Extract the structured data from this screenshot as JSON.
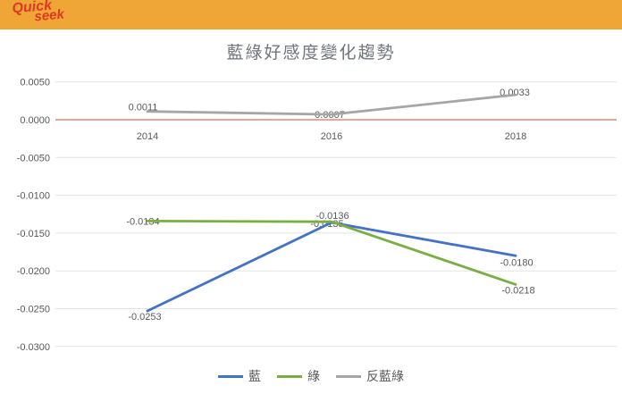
{
  "banner": {
    "logo_line1": "Quick",
    "logo_line2": "seek",
    "bg_color": "#f0a636",
    "logo_color": "#df3827"
  },
  "title_color": "#70757e",
  "text_color": "#595959",
  "chart_data": {
    "type": "line",
    "title": "藍綠好感度變化趨勢",
    "categories": [
      "2014",
      "2016",
      "2018"
    ],
    "series": [
      {
        "name": "藍",
        "color": "#4472c4",
        "values": [
          -0.0253,
          -0.0136,
          -0.018
        ],
        "labels": [
          "-0.0253",
          "-0.0136",
          "-0.0180"
        ]
      },
      {
        "name": "綠",
        "color": "#79af41",
        "values": [
          -0.0134,
          -0.0135,
          -0.0218
        ],
        "labels": [
          "-0.0134",
          "-0.0135",
          "-0.0218"
        ]
      },
      {
        "name": "反藍綠",
        "color": "#a6a6a6",
        "values": [
          0.0011,
          0.0007,
          0.0033
        ],
        "labels": [
          "0.0011",
          "0.0007",
          "0.0033"
        ]
      }
    ],
    "y_axis": {
      "min": -0.03,
      "max": 0.005,
      "tick_step": 0.005,
      "tick_labels": [
        "0.0050",
        "0.0000",
        "-0.0050",
        "-0.0100",
        "-0.0150",
        "-0.0200",
        "-0.0250",
        "-0.0300"
      ]
    },
    "xlabel": "",
    "ylabel": "",
    "grid": "horizontal",
    "zero_line_color": "#de6e5a",
    "gridline_color": "#e4e4e4",
    "legend_position": "bottom"
  }
}
